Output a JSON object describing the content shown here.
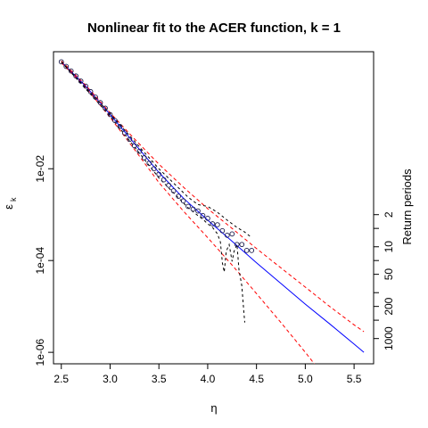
{
  "chart_data": {
    "type": "scatter",
    "title": "Nonlinear fit to the ACER function, k = 1",
    "xlabel": "η",
    "ylabel_main": "ε",
    "ylabel_sub": "k",
    "right_axis_label": "Return periods",
    "log_y": true,
    "grid": false,
    "xlim": [
      2.42,
      5.7
    ],
    "ylim_log10": [
      -6.25,
      0.55
    ],
    "x_ticks": [
      2.5,
      3.0,
      3.5,
      4.0,
      4.5,
      5.0,
      5.5
    ],
    "x_tick_labels": [
      "2.5",
      "3.0",
      "3.5",
      "4.0",
      "4.5",
      "5.0",
      "5.5"
    ],
    "y_ticks_log10": [
      -2,
      -4,
      -6
    ],
    "y_tick_labels": [
      "1e-02",
      "1e-04",
      "1e-06"
    ],
    "right_ticks_log10": [
      -3.0,
      -3.3,
      -3.7,
      -4.0,
      -4.3,
      -4.7,
      -5.0,
      -5.3,
      -5.7
    ],
    "right_tick_labels": [
      {
        "label": "2",
        "log10": -3.0
      },
      {
        "label": "10",
        "log10": -3.7
      },
      {
        "label": "50",
        "log10": -4.3
      },
      {
        "label": "200",
        "log10": -5.0
      },
      {
        "label": "1000",
        "log10": -5.7
      }
    ],
    "colors": {
      "points": "#1a1a4a",
      "fit": "#0000ff",
      "confidence": "#ff0000",
      "empirical_band": "#000000"
    },
    "series": [
      {
        "kind": "points",
        "x": [
          2.5,
          2.55,
          2.6,
          2.65,
          2.7,
          2.75,
          2.8,
          2.85,
          2.9,
          2.95,
          3.0,
          3.05,
          3.1,
          3.15,
          3.2,
          3.25,
          3.3,
          3.35,
          3.4,
          3.45,
          3.5,
          3.55,
          3.6,
          3.65,
          3.7,
          3.75,
          3.8,
          3.85,
          3.9,
          3.95,
          4.0,
          4.05,
          4.1,
          4.15,
          4.2,
          4.25,
          4.3,
          4.35,
          4.4,
          4.45
        ],
        "log10y": [
          0.33,
          0.23,
          0.13,
          0.02,
          -0.09,
          -0.2,
          -0.32,
          -0.44,
          -0.56,
          -0.68,
          -0.82,
          -0.95,
          -1.08,
          -1.22,
          -1.36,
          -1.5,
          -1.62,
          -1.76,
          -1.88,
          -2.0,
          -2.12,
          -2.24,
          -2.36,
          -2.48,
          -2.6,
          -2.7,
          -2.82,
          -2.88,
          -2.92,
          -3.02,
          -3.08,
          -3.2,
          -3.22,
          -3.35,
          -3.45,
          -3.42,
          -3.65,
          -3.65,
          -3.78,
          -3.78
        ]
      },
      {
        "kind": "fit_line",
        "x": [
          2.5,
          2.75,
          3.0,
          3.25,
          3.5,
          3.75,
          4.0,
          4.25,
          4.5,
          4.75,
          5.0,
          5.25,
          5.5,
          5.6
        ],
        "log10y": [
          0.33,
          -0.2,
          -0.82,
          -1.45,
          -2.08,
          -2.64,
          -3.12,
          -3.58,
          -4.05,
          -4.5,
          -4.95,
          -5.38,
          -5.82,
          -6.0
        ]
      },
      {
        "kind": "upper_bound",
        "x": [
          2.5,
          2.75,
          3.0,
          3.25,
          3.5,
          3.75,
          4.0,
          4.25,
          4.5,
          4.75,
          5.0,
          5.25,
          5.5,
          5.6
        ],
        "log10y": [
          0.35,
          -0.18,
          -0.78,
          -1.35,
          -1.9,
          -2.4,
          -2.87,
          -3.3,
          -3.74,
          -4.16,
          -4.58,
          -5.0,
          -5.4,
          -5.55
        ]
      },
      {
        "kind": "lower_bound",
        "x": [
          2.5,
          2.75,
          3.0,
          3.25,
          3.5,
          3.75,
          4.0,
          4.25,
          4.5,
          4.75,
          5.0,
          5.1
        ],
        "log10y": [
          0.31,
          -0.23,
          -0.88,
          -1.58,
          -2.3,
          -2.92,
          -3.5,
          -4.1,
          -4.72,
          -5.35,
          -6.0,
          -6.27
        ]
      },
      {
        "kind": "empirical_upper",
        "x": [
          2.5,
          3.0,
          3.5,
          3.8,
          3.9,
          4.0,
          4.1,
          4.2,
          4.3,
          4.38,
          4.45
        ],
        "log10y": [
          0.33,
          -0.8,
          -2.0,
          -2.62,
          -2.78,
          -2.82,
          -2.95,
          -3.12,
          -3.28,
          -3.38,
          -3.5
        ]
      },
      {
        "kind": "empirical_lower",
        "x": [
          2.5,
          3.0,
          3.5,
          3.8,
          3.9,
          3.95,
          4.0,
          4.05,
          4.1,
          4.13,
          4.15,
          4.17,
          4.19,
          4.22,
          4.25,
          4.27,
          4.3,
          4.32,
          4.35,
          4.37,
          4.38
        ],
        "log10y": [
          0.33,
          -0.85,
          -2.2,
          -2.85,
          -3.02,
          -3.1,
          -3.2,
          -3.28,
          -3.42,
          -3.6,
          -4.05,
          -4.25,
          -3.8,
          -3.65,
          -4.02,
          -3.8,
          -3.65,
          -4.2,
          -4.55,
          -5.1,
          -5.35
        ]
      }
    ]
  }
}
